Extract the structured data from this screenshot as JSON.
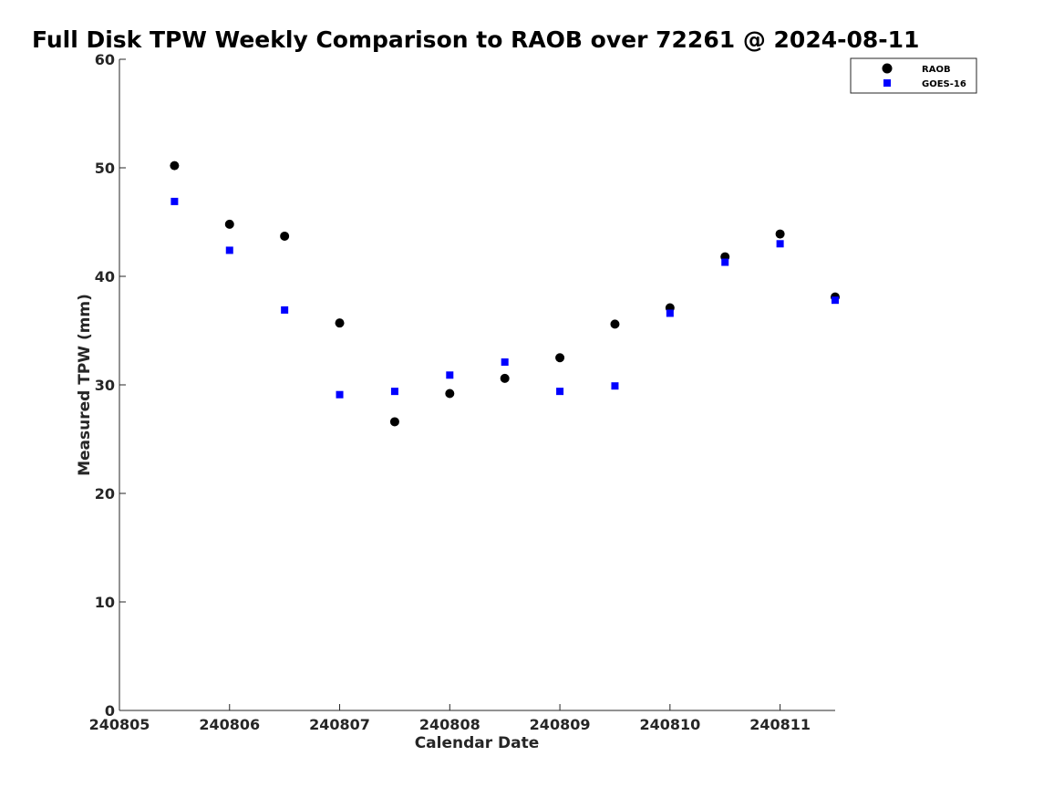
{
  "chart_data": {
    "type": "scatter",
    "title": "Full Disk TPW Weekly Comparison to RAOB over 72261 @ 2024-08-11",
    "xlabel": "Calendar Date",
    "ylabel": "Measured TPW (mm)",
    "xlim": [
      240805,
      240811.5
    ],
    "ylim": [
      0,
      60
    ],
    "x_ticks": [
      {
        "value": 240805,
        "label": "240805"
      },
      {
        "value": 240806,
        "label": "240806"
      },
      {
        "value": 240807,
        "label": "240807"
      },
      {
        "value": 240808,
        "label": "240808"
      },
      {
        "value": 240809,
        "label": "240809"
      },
      {
        "value": 240810,
        "label": "240810"
      },
      {
        "value": 240811,
        "label": "240811"
      }
    ],
    "y_ticks": [
      {
        "value": 0,
        "label": "0"
      },
      {
        "value": 10,
        "label": "10"
      },
      {
        "value": 20,
        "label": "20"
      },
      {
        "value": 30,
        "label": "30"
      },
      {
        "value": 40,
        "label": "40"
      },
      {
        "value": 50,
        "label": "50"
      },
      {
        "value": 60,
        "label": "60"
      }
    ],
    "grid": false,
    "legend_position": "top-right",
    "x": [
      240805.5,
      240806,
      240806.5,
      240807,
      240807.5,
      240808,
      240808.5,
      240809,
      240809.5,
      240810,
      240810.5,
      240811,
      240811.5
    ],
    "series": [
      {
        "name": "RAOB",
        "marker": "circle",
        "color": "#000000",
        "values": [
          50.2,
          44.8,
          43.7,
          35.7,
          26.6,
          29.2,
          30.6,
          32.5,
          35.6,
          37.1,
          41.8,
          43.9,
          38.1
        ]
      },
      {
        "name": "GOES-16",
        "marker": "square",
        "color": "#0000ff",
        "values": [
          46.9,
          42.4,
          36.9,
          29.1,
          29.4,
          30.9,
          32.1,
          29.4,
          29.9,
          36.6,
          41.3,
          43.0,
          37.8
        ]
      }
    ]
  }
}
